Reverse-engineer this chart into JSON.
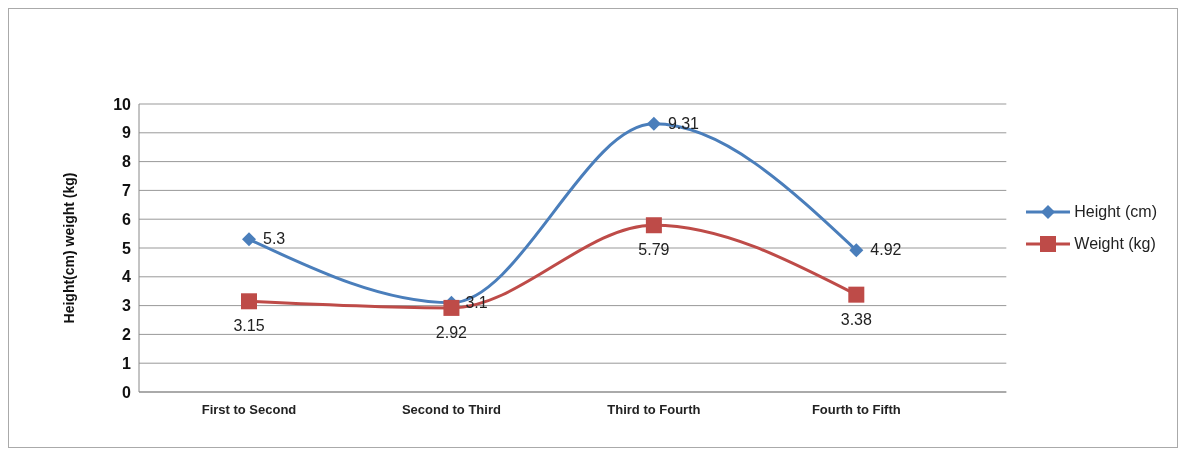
{
  "chart_data": {
    "type": "line",
    "ylabel": "Height(cm)      weight (kg)",
    "categories": [
      "First to Second",
      "Second to Third",
      "Third to Fourth",
      "Fourth to Fifth"
    ],
    "series": [
      {
        "name": "Height (cm)",
        "color": "#4a7ebb",
        "marker": "diamond",
        "values": [
          5.3,
          3.1,
          9.31,
          4.92
        ]
      },
      {
        "name": "Weight (kg)",
        "color": "#be4b48",
        "marker": "square",
        "values": [
          3.15,
          2.92,
          5.79,
          3.38
        ]
      }
    ],
    "ylim": [
      0,
      10
    ],
    "yticks": [
      0,
      1,
      2,
      3,
      4,
      5,
      6,
      7,
      8,
      9,
      10
    ],
    "grid": "y",
    "legend": "right",
    "data_labels": true
  }
}
